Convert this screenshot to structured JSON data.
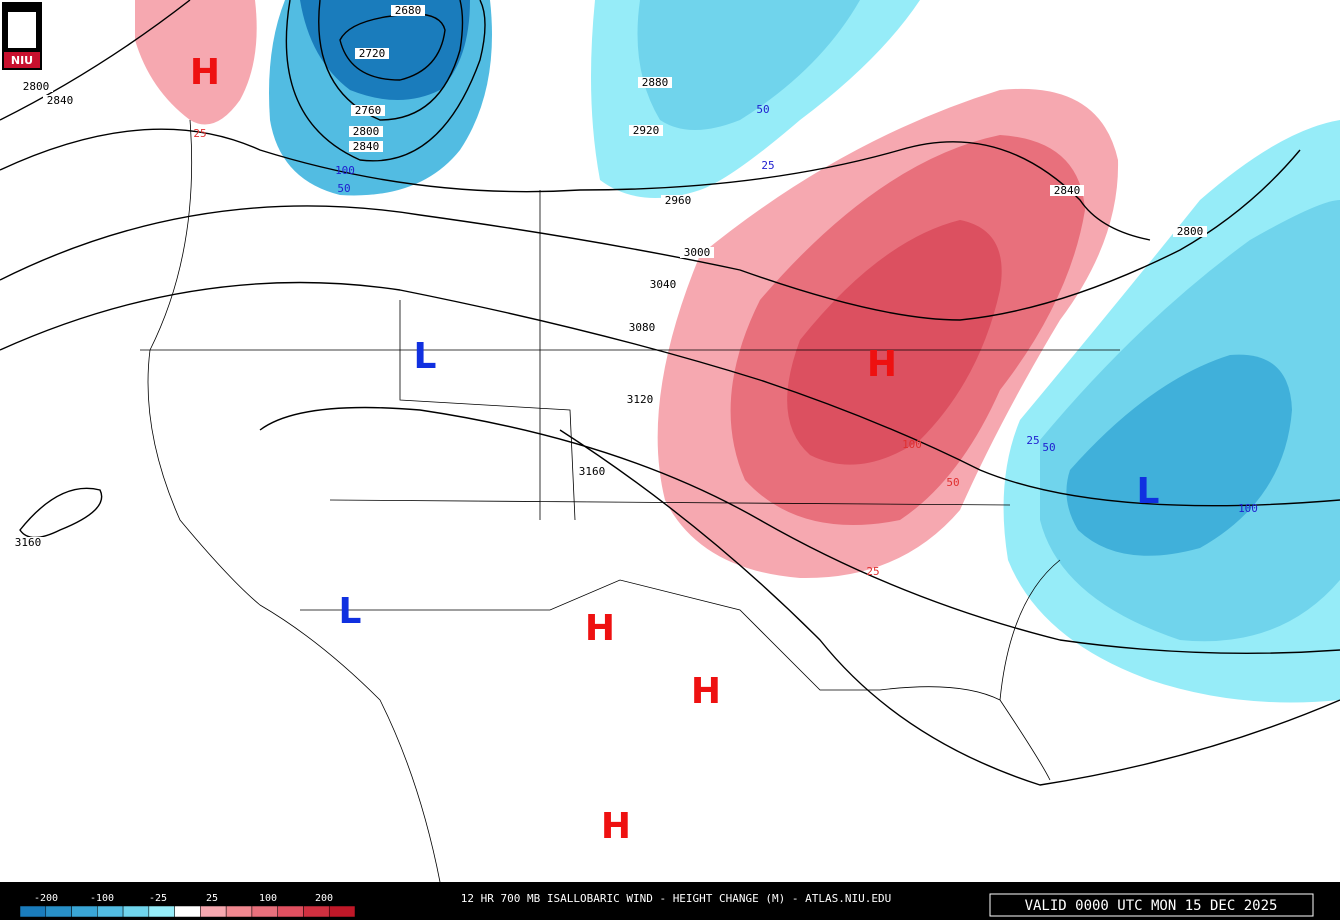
{
  "logo": {
    "text": "NIU"
  },
  "map": {
    "contour_labels": [
      "2800",
      "2840",
      "2680",
      "2720",
      "2760",
      "2800",
      "2840",
      "2880",
      "2920",
      "2960",
      "3000",
      "3040",
      "3080",
      "3120",
      "3160",
      "3160",
      "2840",
      "2800"
    ],
    "change_labels": [
      {
        "text": "25",
        "color": "#e03030"
      },
      {
        "text": "100",
        "color": "#2020d0"
      },
      {
        "text": "50",
        "color": "#2020d0"
      },
      {
        "text": "50",
        "color": "#2020d0"
      },
      {
        "text": "25",
        "color": "#2020d0"
      },
      {
        "text": "100",
        "color": "#e03030"
      },
      {
        "text": "50",
        "color": "#e03030"
      },
      {
        "text": "25",
        "color": "#e03030"
      },
      {
        "text": "25",
        "color": "#2020d0"
      },
      {
        "text": "50",
        "color": "#2020d0"
      },
      {
        "text": "100",
        "color": "#2020d0"
      }
    ],
    "centers": [
      {
        "text": "H",
        "color": "#ee1111"
      },
      {
        "text": "L",
        "color": "#1030e0"
      },
      {
        "text": "H",
        "color": "#ee1111"
      },
      {
        "text": "L",
        "color": "#1030e0"
      },
      {
        "text": "L",
        "color": "#1030e0"
      },
      {
        "text": "H",
        "color": "#ee1111"
      },
      {
        "text": "H",
        "color": "#ee1111"
      },
      {
        "text": "H",
        "color": "#ee1111"
      }
    ]
  },
  "legend": {
    "labels": [
      "-200",
      "-100",
      "-25",
      "25",
      "100",
      "200"
    ],
    "colors": [
      "#1a7cbc",
      "#2890c8",
      "#3aa6d6",
      "#52bce2",
      "#70d4ec",
      "#96ecf8",
      "#ffffff",
      "#f6a8b0",
      "#f08890",
      "#e8707c",
      "#e05060",
      "#d03040",
      "#c01828"
    ]
  },
  "footer": {
    "title": "12 HR 700 MB ISALLOBARIC WIND - HEIGHT CHANGE (M) - ATLAS.NIU.EDU",
    "valid": "VALID 0000 UTC MON 15 DEC 2025"
  }
}
